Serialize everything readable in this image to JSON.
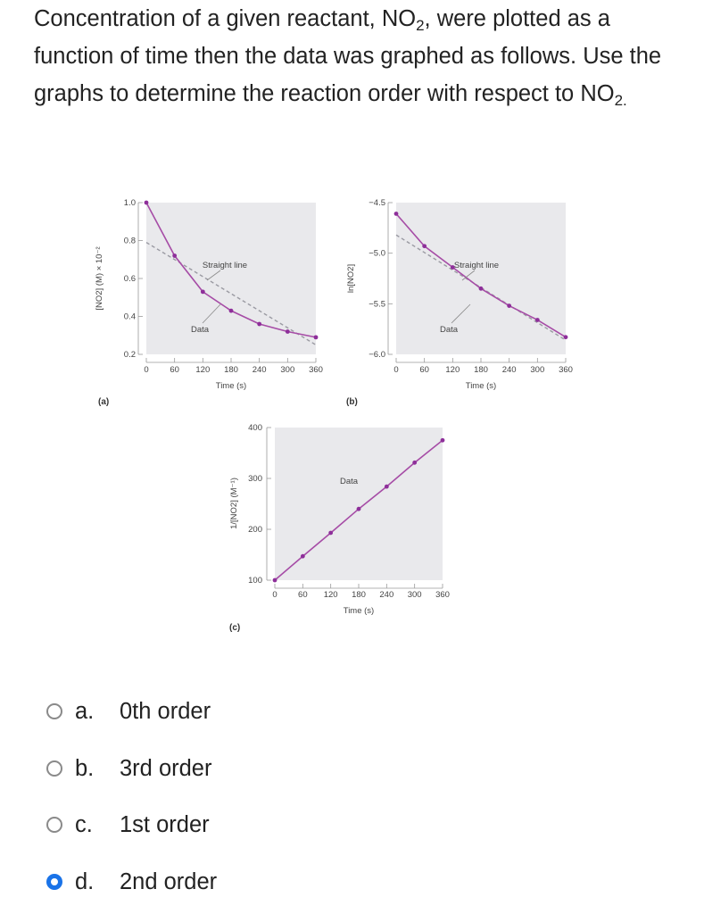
{
  "question": {
    "part1": "Concentration of a given reactant, NO",
    "sub1": "2",
    "part2": ", were plotted as a function of time then the data was graphed as follows. Use the graphs to determine the reaction order with respect to NO",
    "sub2": "2."
  },
  "options": [
    {
      "letter": "a.",
      "text": "0th order",
      "selected": false
    },
    {
      "letter": "b.",
      "text": "3rd order",
      "selected": false
    },
    {
      "letter": "c.",
      "text": "1st order",
      "selected": false
    },
    {
      "letter": "d.",
      "text": "2nd order",
      "selected": true
    }
  ],
  "colors": {
    "data_line": "#a64ca6",
    "data_point": "#8e2f9a",
    "straight_line": "#9a9aa2",
    "plot_bg": "#e9e9ec",
    "radio_selected": "#1a73e8"
  },
  "chart_data": [
    {
      "type": "line",
      "panel_label": "(a)",
      "xlabel": "Time (s)",
      "ylabel": "[NO2] (M) × 10⁻²",
      "x_ticks": [
        0,
        60,
        120,
        180,
        240,
        300,
        360
      ],
      "y_ticks": [
        0.2,
        0.4,
        0.6,
        0.8,
        1.0
      ],
      "y_tick_labels": [
        "0.2",
        "0.4",
        "0.6",
        "0.8",
        "1.0"
      ],
      "xlim": [
        0,
        360
      ],
      "ylim": [
        0.2,
        1.0
      ],
      "series": [
        {
          "name": "Data",
          "x": [
            0,
            60,
            120,
            180,
            240,
            300,
            360
          ],
          "y": [
            1.0,
            0.72,
            0.53,
            0.43,
            0.36,
            0.32,
            0.29
          ]
        }
      ],
      "straight_line": {
        "name": "Straight line",
        "x": [
          0,
          360
        ],
        "y": [
          0.79,
          0.25
        ]
      },
      "annotations": [
        "Straight line",
        "Data"
      ]
    },
    {
      "type": "line",
      "panel_label": "(b)",
      "xlabel": "Time (s)",
      "ylabel": "ln[NO2]",
      "x_ticks": [
        0,
        60,
        120,
        180,
        240,
        300,
        360
      ],
      "y_ticks": [
        -6.0,
        -5.5,
        -5.0,
        -4.5
      ],
      "y_tick_labels": [
        "−6.0",
        "−5.5",
        "−5.0",
        "−4.5"
      ],
      "xlim": [
        0,
        360
      ],
      "ylim": [
        -6.0,
        -4.5
      ],
      "series": [
        {
          "name": "Data",
          "x": [
            0,
            60,
            120,
            180,
            240,
            300,
            360
          ],
          "y": [
            -4.61,
            -4.93,
            -5.14,
            -5.35,
            -5.52,
            -5.66,
            -5.83
          ]
        }
      ],
      "straight_line": {
        "name": "Straight line",
        "x": [
          0,
          360
        ],
        "y": [
          -4.82,
          -5.86
        ]
      },
      "annotations": [
        "Straight line",
        "Data"
      ]
    },
    {
      "type": "line",
      "panel_label": "(c)",
      "xlabel": "Time (s)",
      "ylabel": "1/[NO2] (M⁻¹)",
      "x_ticks": [
        0,
        60,
        120,
        180,
        240,
        300,
        360
      ],
      "y_ticks": [
        100,
        200,
        300,
        400
      ],
      "y_tick_labels": [
        "100",
        "200",
        "300",
        "400"
      ],
      "xlim": [
        0,
        360
      ],
      "ylim": [
        100,
        400
      ],
      "series": [
        {
          "name": "Data",
          "x": [
            0,
            60,
            120,
            180,
            240,
            300,
            360
          ],
          "y": [
            100,
            147,
            193,
            240,
            284,
            331,
            375
          ]
        }
      ],
      "annotations": [
        "Data"
      ]
    }
  ]
}
